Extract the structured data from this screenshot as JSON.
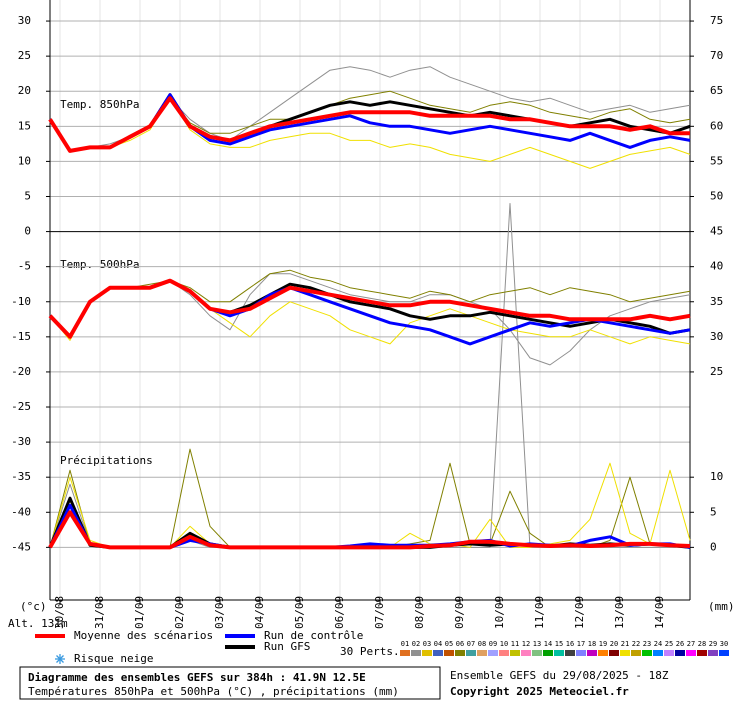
{
  "chart_data": {
    "type": "line",
    "title": "Diagramme des ensembles GEFS sur 384h : 41.9N 12.5E",
    "subtitle": "Températures 850hPa et 500hPa (°C) , précipitations (mm)",
    "run_info": "Ensemble GEFS du 29/08/2025 - 18Z",
    "copyright": "Copyright 2025 Meteociel.fr",
    "altitude": "Alt. 131m",
    "y_unit": "(°c)",
    "y2_unit": "(mm)",
    "annotations": [
      "Temp. 850hPa",
      "Temp. 500hPa",
      "Précipitations"
    ],
    "snow_label": "Risque neige",
    "members_label": "30 Perts.",
    "xlim": [
      0,
      384
    ],
    "ylim": [
      -52.5,
      33
    ],
    "y2lim": [
      -7.5,
      78
    ],
    "grid": true,
    "xticks": [
      {
        "value": 6,
        "label": "30/08"
      },
      {
        "value": 30,
        "label": "31/08"
      },
      {
        "value": 54,
        "label": "01/09"
      },
      {
        "value": 78,
        "label": "02/09"
      },
      {
        "value": 102,
        "label": "03/09"
      },
      {
        "value": 126,
        "label": "04/09"
      },
      {
        "value": 150,
        "label": "05/09"
      },
      {
        "value": 174,
        "label": "06/09"
      },
      {
        "value": 198,
        "label": "07/09"
      },
      {
        "value": 222,
        "label": "08/09"
      },
      {
        "value": 246,
        "label": "09/09"
      },
      {
        "value": 270,
        "label": "10/09"
      },
      {
        "value": 294,
        "label": "11/09"
      },
      {
        "value": 318,
        "label": "12/09"
      },
      {
        "value": 342,
        "label": "13/09"
      },
      {
        "value": 366,
        "label": "14/09"
      }
    ],
    "yticks": [
      30,
      25,
      20,
      15,
      10,
      5,
      0,
      -5,
      -10,
      -15,
      -20,
      -25,
      -30,
      -35,
      -40,
      -45
    ],
    "y2ticks": [
      75,
      70,
      65,
      60,
      55,
      50,
      45,
      40,
      35,
      30,
      25,
      10,
      5,
      0
    ],
    "x": [
      0,
      12,
      24,
      36,
      48,
      60,
      72,
      84,
      96,
      108,
      120,
      132,
      144,
      156,
      168,
      180,
      192,
      204,
      216,
      228,
      240,
      252,
      264,
      276,
      288,
      300,
      312,
      324,
      336,
      348,
      360,
      372,
      384
    ],
    "series": [
      {
        "name": "Moyenne des scénarios",
        "color": "#ff0000",
        "t850": [
          16,
          11.5,
          12,
          12,
          13.5,
          15,
          19,
          15,
          13.5,
          13,
          14,
          15,
          15.5,
          16,
          16.5,
          17,
          17,
          17,
          17,
          16.5,
          16.5,
          16.5,
          16.5,
          16,
          16,
          15.5,
          15,
          15,
          15,
          14.5,
          15,
          14,
          14
        ],
        "t500": [
          -12,
          -15,
          -10,
          -8,
          -8,
          -8,
          -7,
          -8.5,
          -11,
          -11.5,
          -11,
          -9.5,
          -8,
          -8.5,
          -9,
          -9.5,
          -10,
          -10.5,
          -10.5,
          -10,
          -10,
          -10.5,
          -11,
          -11.5,
          -12,
          -12,
          -12.5,
          -12.5,
          -12.5,
          -12.5,
          -12,
          -12.5,
          -12
        ],
        "precip": [
          0,
          5,
          0.5,
          0,
          0,
          0,
          0,
          1.5,
          0.3,
          0,
          0,
          0,
          0,
          0,
          0,
          0,
          0,
          0,
          0,
          0.2,
          0.3,
          0.8,
          0.8,
          0.5,
          0.3,
          0.2,
          0.3,
          0.2,
          0.3,
          0.5,
          0.5,
          0.3,
          0.2
        ]
      },
      {
        "name": "Run de contrôle",
        "color": "#0000ff",
        "t850": [
          16,
          11.5,
          12,
          12,
          13.5,
          15,
          19.5,
          15,
          13,
          12.5,
          13.5,
          14.5,
          15,
          15.5,
          16,
          16.5,
          15.5,
          15,
          15,
          14.5,
          14,
          14.5,
          15,
          14.5,
          14,
          13.5,
          13,
          14,
          13,
          12,
          13,
          13.5,
          13
        ],
        "t500": [
          -12,
          -15,
          -10,
          -8,
          -8,
          -8,
          -7,
          -8.5,
          -11,
          -12,
          -11,
          -9,
          -8,
          -9,
          -10,
          -11,
          -12,
          -13,
          -13.5,
          -14,
          -15,
          -16,
          -15,
          -14,
          -13,
          -13.5,
          -13,
          -12.5,
          -13,
          -13.5,
          -14,
          -14.5,
          -14
        ],
        "precip": [
          0,
          6,
          0.5,
          0,
          0,
          0,
          0,
          1,
          0.5,
          0,
          0,
          0,
          0,
          0,
          0,
          0.2,
          0.5,
          0.3,
          0.3,
          0.3,
          0.5,
          0.8,
          1,
          0.2,
          0.5,
          0.3,
          0.2,
          1,
          1.5,
          0.3,
          0.5,
          0.5,
          0
        ]
      },
      {
        "name": "Run GFS",
        "color": "#000000",
        "t850": [
          16,
          11.5,
          12,
          12,
          13.5,
          15,
          19.5,
          15,
          13.5,
          13,
          14,
          15,
          16,
          17,
          18,
          18.5,
          18,
          18.5,
          18,
          17.5,
          17,
          16.5,
          17,
          16.5,
          16,
          15.5,
          15,
          15.5,
          16,
          15,
          14.5,
          14,
          15
        ],
        "t500": [
          -12,
          -15,
          -10,
          -8,
          -8,
          -8,
          -7,
          -8.5,
          -11,
          -11.5,
          -10.5,
          -9,
          -7.5,
          -8,
          -9,
          -10,
          -10.5,
          -11,
          -12,
          -12.5,
          -12,
          -12,
          -11.5,
          -12,
          -12.5,
          -13,
          -13.5,
          -13,
          -12.5,
          -13,
          -13.5,
          -14.5,
          -14
        ],
        "precip": [
          0,
          7,
          0.3,
          0,
          0,
          0,
          0,
          2,
          0.5,
          0,
          0,
          0,
          0,
          0,
          0,
          0,
          0,
          0,
          0,
          0,
          0.3,
          0.5,
          0.3,
          0.5,
          0.3,
          0.2,
          0.5,
          0.3,
          0.5,
          0.3,
          0.5,
          0.3,
          0
        ]
      }
    ],
    "members": [
      {
        "name": "01",
        "color": "#e07020"
      },
      {
        "name": "02",
        "color": "#909090",
        "t850": [
          16,
          11.5,
          12,
          12.5,
          13.5,
          15,
          19,
          16,
          14,
          13,
          15,
          17,
          19,
          21,
          23,
          23.5,
          23,
          22,
          23,
          23.5,
          22,
          21,
          20,
          19,
          18.5,
          19,
          18,
          17,
          17.5,
          18,
          17,
          17.5,
          18
        ],
        "t500": [
          -12,
          -15,
          -10,
          -8,
          -8,
          -8,
          -7,
          -9,
          -12,
          -14,
          -9,
          -6,
          -6,
          -7,
          -8,
          -9,
          -9.5,
          -10,
          -10,
          -9,
          -9,
          -10,
          -11,
          -14,
          -18,
          -19,
          -17,
          -14,
          -12,
          -11,
          -10,
          -9.5,
          -9
        ],
        "precip": [
          0,
          9,
          0.5,
          0,
          0,
          0,
          0,
          1,
          0,
          0,
          0,
          0,
          0,
          0,
          0,
          0,
          0,
          0,
          0,
          0,
          0,
          0,
          0,
          49,
          0,
          0,
          0,
          0,
          0,
          0,
          0,
          0,
          0
        ]
      },
      {
        "name": "03",
        "color": "#e0c000"
      },
      {
        "name": "04",
        "color": "#4060c0"
      },
      {
        "name": "05",
        "color": "#c05000"
      },
      {
        "name": "06",
        "color": "#808000",
        "t850": [
          16,
          11.5,
          12,
          12,
          13.5,
          15,
          19,
          15.5,
          14,
          14,
          15,
          16,
          16,
          17,
          18,
          19,
          19.5,
          20,
          19,
          18,
          17.5,
          17,
          18,
          18.5,
          18,
          17,
          16.5,
          16,
          17,
          17.5,
          16,
          15.5,
          16
        ],
        "t500": [
          -12,
          -15,
          -10,
          -8,
          -8,
          -7.5,
          -7,
          -8,
          -10,
          -10,
          -8,
          -6,
          -5.5,
          -6.5,
          -7,
          -8,
          -8.5,
          -9,
          -9.5,
          -8.5,
          -9,
          -10,
          -9,
          -8.5,
          -8,
          -9,
          -8,
          -8.5,
          -9,
          -10,
          -9.5,
          -9,
          -8.5
        ],
        "precip": [
          0,
          11,
          0.5,
          0,
          0,
          0,
          0,
          14,
          3,
          0,
          0,
          0,
          0,
          0,
          0,
          0,
          0,
          0,
          0.5,
          1,
          12,
          0.5,
          0.5,
          8,
          2,
          0,
          0.5,
          0,
          1,
          10,
          0.5,
          0.5,
          0
        ]
      },
      {
        "name": "07",
        "color": "#40a0a0"
      },
      {
        "name": "08",
        "color": "#e0a060"
      },
      {
        "name": "09",
        "color": "#a0a0ff"
      },
      {
        "name": "10",
        "color": "#ff8080"
      },
      {
        "name": "11",
        "color": "#c0c000"
      },
      {
        "name": "12",
        "color": "#ff80c0"
      },
      {
        "name": "13",
        "color": "#80c080"
      },
      {
        "name": "14",
        "color": "#00a000"
      },
      {
        "name": "15",
        "color": "#00c0a0"
      },
      {
        "name": "16",
        "color": "#404040"
      },
      {
        "name": "17",
        "color": "#8080ff"
      },
      {
        "name": "18",
        "color": "#c000c0"
      },
      {
        "name": "19",
        "color": "#ff8000"
      },
      {
        "name": "20",
        "color": "#800000"
      },
      {
        "name": "21",
        "color": "#f0e000",
        "t850": [
          16,
          11.5,
          12,
          12,
          13,
          14.5,
          19,
          14.5,
          12.5,
          12,
          12,
          13,
          13.5,
          14,
          14,
          13,
          13,
          12,
          12.5,
          12,
          11,
          10.5,
          10,
          11,
          12,
          11,
          10,
          9,
          10,
          11,
          11.5,
          12,
          11
        ],
        "t500": [
          -12,
          -15.5,
          -10,
          -8,
          -8,
          -8,
          -7,
          -8.5,
          -11,
          -13,
          -15,
          -12,
          -10,
          -11,
          -12,
          -14,
          -15,
          -16,
          -13,
          -12,
          -11,
          -12,
          -13,
          -14,
          -14.5,
          -15,
          -15,
          -14,
          -15,
          -16,
          -15,
          -15.5,
          -16
        ],
        "precip": [
          0,
          10,
          1,
          0,
          0,
          0,
          0,
          3,
          0.5,
          0,
          0,
          0,
          0,
          0,
          0,
          0,
          0.5,
          0,
          2,
          0.5,
          0.5,
          0,
          4,
          0,
          0,
          0.5,
          1,
          4,
          12,
          2,
          0.5,
          11,
          1
        ]
      },
      {
        "name": "22",
        "color": "#c0a000"
      },
      {
        "name": "23",
        "color": "#00c000"
      },
      {
        "name": "24",
        "color": "#0080ff"
      },
      {
        "name": "25",
        "color": "#c080ff"
      },
      {
        "name": "26",
        "color": "#0000a0"
      },
      {
        "name": "27",
        "color": "#ff00ff"
      },
      {
        "name": "28",
        "color": "#a00000"
      },
      {
        "name": "29",
        "color": "#8040c0"
      },
      {
        "name": "30",
        "color": "#0040ff"
      }
    ]
  }
}
